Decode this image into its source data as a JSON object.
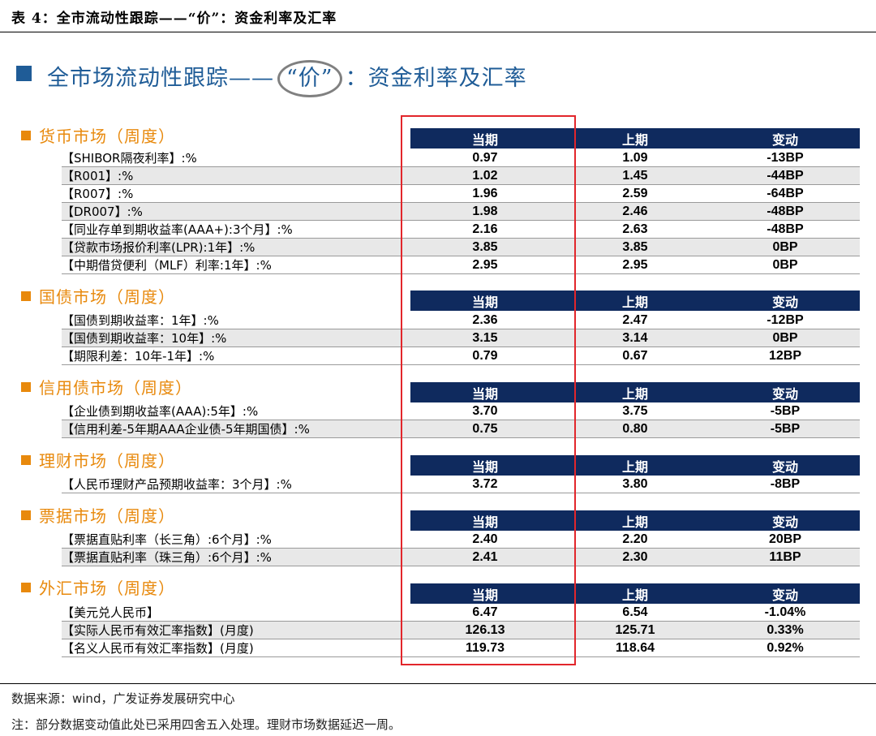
{
  "caption": "表 4：全市流动性跟踪——“价”：资金利率及汇率",
  "title": {
    "prefix": "全市场流动性跟踪——",
    "highlight": "“价”",
    "suffix": "：资金利率及汇率"
  },
  "columns": [
    "当期",
    "上期",
    "变动"
  ],
  "sections": [
    {
      "name": "货币市场（周度）",
      "rows": [
        {
          "label": "【SHIBOR隔夜利率】:%",
          "current": "0.97",
          "previous": "1.09",
          "change": "-13BP"
        },
        {
          "label": "【R001】:%",
          "current": "1.02",
          "previous": "1.45",
          "change": "-44BP"
        },
        {
          "label": "【R007】:%",
          "current": "1.96",
          "previous": "2.59",
          "change": "-64BP"
        },
        {
          "label": "【DR007】:%",
          "current": "1.98",
          "previous": "2.46",
          "change": "-48BP"
        },
        {
          "label": "【同业存单到期收益率(AAA+):3个月】:%",
          "current": "2.16",
          "previous": "2.63",
          "change": "-48BP"
        },
        {
          "label": "【贷款市场报价利率(LPR):1年】:%",
          "current": "3.85",
          "previous": "3.85",
          "change": "0BP"
        },
        {
          "label": "【中期借贷便利（MLF）利率:1年】:%",
          "current": "2.95",
          "previous": "2.95",
          "change": "0BP"
        }
      ]
    },
    {
      "name": "国债市场（周度）",
      "rows": [
        {
          "label": "【国债到期收益率：1年】:%",
          "current": "2.36",
          "previous": "2.47",
          "change": "-12BP"
        },
        {
          "label": "【国债到期收益率：10年】:%",
          "current": "3.15",
          "previous": "3.14",
          "change": "0BP"
        },
        {
          "label": "【期限利差：10年-1年】:%",
          "current": "0.79",
          "previous": "0.67",
          "change": "12BP"
        }
      ]
    },
    {
      "name": "信用债市场（周度）",
      "rows": [
        {
          "label": "【企业债到期收益率(AAA):5年】:%",
          "current": "3.70",
          "previous": "3.75",
          "change": "-5BP"
        },
        {
          "label": "【信用利差-5年期AAA企业债-5年期国债】:%",
          "current": "0.75",
          "previous": "0.80",
          "change": "-5BP"
        }
      ]
    },
    {
      "name": "理财市场（周度）",
      "rows": [
        {
          "label": "【人民币理财产品预期收益率：3个月】:%",
          "current": "3.72",
          "previous": "3.80",
          "change": "-8BP"
        }
      ]
    },
    {
      "name": "票据市场（周度）",
      "rows": [
        {
          "label": "【票据直贴利率（长三角）:6个月】:%",
          "current": "2.40",
          "previous": "2.20",
          "change": "20BP"
        },
        {
          "label": "【票据直贴利率（珠三角）:6个月】:%",
          "current": "2.41",
          "previous": "2.30",
          "change": "11BP"
        }
      ]
    },
    {
      "name": "外汇市场（周度）",
      "rows": [
        {
          "label": "【美元兑人民币】",
          "current": "6.47",
          "previous": "6.54",
          "change": "-1.04%"
        },
        {
          "label": "【实际人民币有效汇率指数】(月度)",
          "current": "126.13",
          "previous": "125.71",
          "change": "0.33%"
        },
        {
          "label": "【名义人民币有效汇率指数】(月度)",
          "current": "119.73",
          "previous": "118.64",
          "change": "0.92%"
        }
      ]
    }
  ],
  "source": "数据来源：wind，广发证券发展研究中心",
  "note": "注：部分数据变动值此处已采用四舍五入处理。理财市场数据延迟一周。",
  "colors": {
    "navy": "#0f2a5e",
    "orange": "#e8890c",
    "blue": "#1f5c97",
    "red": "#e2262b"
  }
}
